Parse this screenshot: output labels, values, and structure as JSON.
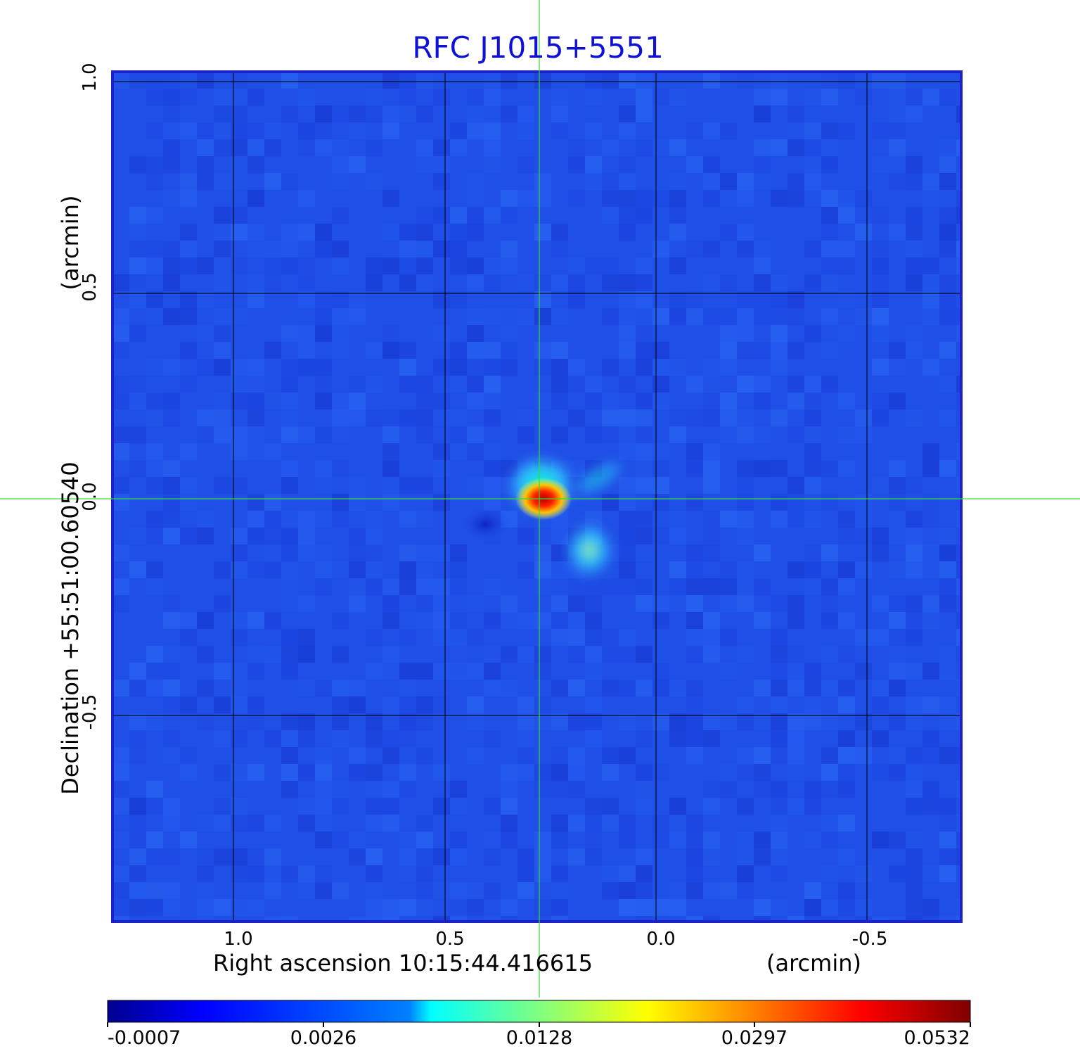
{
  "title": "RFC J1015+5551",
  "colors": {
    "title": "#0f12d6",
    "frame": "#1c22c8",
    "crosshair": "#33dd33",
    "grid": "#000000",
    "background_map": "#1f4fe6"
  },
  "axes": {
    "x_label_left": "Right ascension  10:15:44.416615",
    "x_label_right": "(arcmin)",
    "y_label_main": "Declination  +55:51:00.60540",
    "y_label_unit": "(arcmin)",
    "x_ticks": [
      "1.0",
      "0.5",
      "0.0",
      "-0.5"
    ],
    "y_ticks": [
      "1.0",
      "0.5",
      "0.0",
      "-0.5"
    ]
  },
  "colorbar": {
    "colormap": "jet",
    "tick_labels": [
      "-0.0007",
      "0.0026",
      "0.0128",
      "0.0297",
      "0.0532"
    ]
  },
  "source": {
    "peak_value": 0.0532,
    "ra_offset_arcmin": 0.28,
    "dec_offset_arcmin": 0.0
  }
}
